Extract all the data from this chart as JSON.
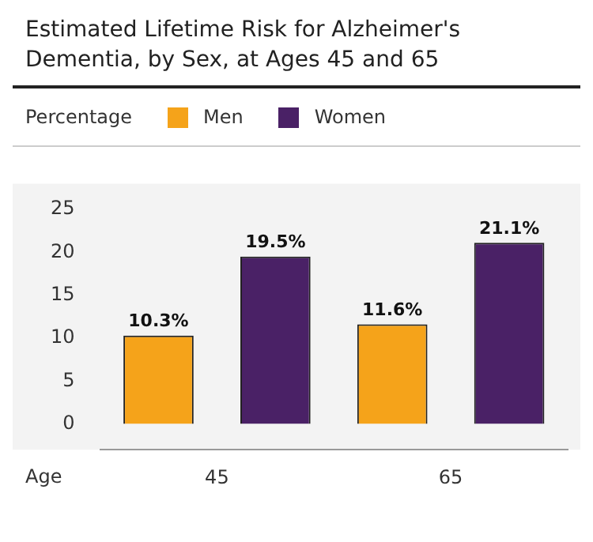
{
  "chart_data": {
    "type": "bar",
    "title": "Estimated Lifetime Risk for Alzheimer's Dementia, by Sex, at Ages 45 and 65",
    "ylabel": "Percentage",
    "xlabel": "Age",
    "categories": [
      "45",
      "65"
    ],
    "series": [
      {
        "name": "Men",
        "color": "#f5a31a",
        "values": [
          10.3,
          11.6
        ],
        "value_labels": [
          "10.3%",
          "11.6%"
        ]
      },
      {
        "name": "Women",
        "color": "#4a2166",
        "values": [
          19.5,
          21.1
        ],
        "value_labels": [
          "19.5%",
          "21.1%"
        ]
      }
    ],
    "ylim": [
      -3,
      28
    ],
    "yticks": [
      0,
      5,
      10,
      15,
      20,
      25
    ],
    "grid": false,
    "legend": "top left"
  }
}
